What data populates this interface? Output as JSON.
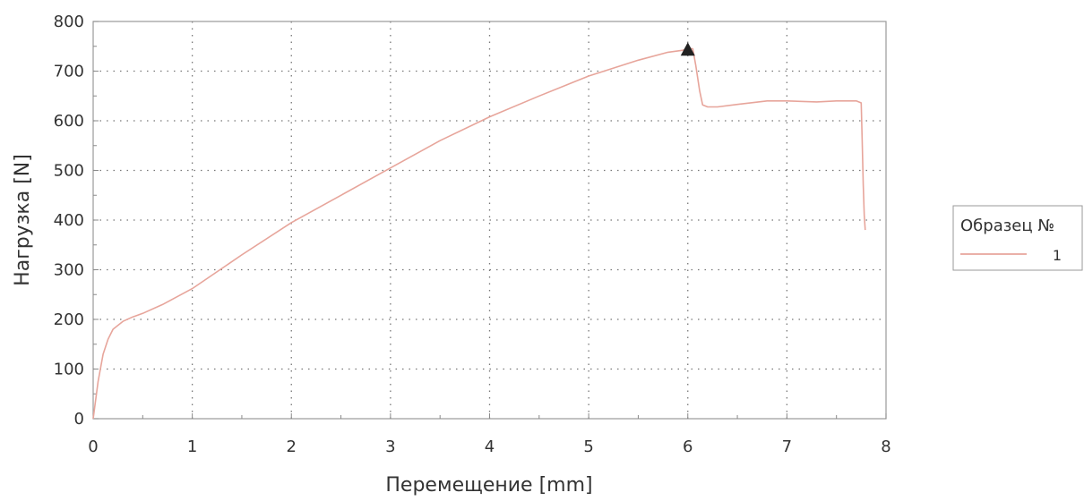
{
  "chart_data": {
    "type": "line",
    "xlabel": "Перемещение [mm]",
    "ylabel": "Нагрузка [N]",
    "xlim": [
      0,
      8
    ],
    "ylim": [
      0,
      800
    ],
    "x_ticks": [
      "0",
      "1",
      "2",
      "3",
      "4",
      "5",
      "6",
      "7",
      "8"
    ],
    "y_ticks": [
      "0",
      "100",
      "200",
      "300",
      "400",
      "500",
      "600",
      "700",
      "800"
    ],
    "grid": "dotted",
    "legend": {
      "title": "Образец №",
      "placement": "right",
      "entries": [
        {
          "label": "1",
          "color": "#e7a59b"
        }
      ]
    },
    "series": [
      {
        "name": "1",
        "color": "#e7a59b",
        "x": [
          0,
          0.02,
          0.05,
          0.1,
          0.15,
          0.2,
          0.3,
          0.4,
          0.5,
          0.7,
          1.0,
          1.5,
          2.0,
          2.5,
          3.0,
          3.5,
          4.0,
          4.5,
          5.0,
          5.5,
          5.8,
          5.95,
          6.0,
          6.05,
          6.08,
          6.12,
          6.15,
          6.2,
          6.3,
          6.5,
          6.8,
          7.0,
          7.3,
          7.5,
          7.7,
          7.75,
          7.76,
          7.77,
          7.78,
          7.79
        ],
        "y": [
          0,
          30,
          75,
          130,
          160,
          180,
          196,
          205,
          212,
          230,
          262,
          330,
          395,
          450,
          505,
          560,
          608,
          650,
          690,
          722,
          738,
          742,
          746,
          745,
          712,
          660,
          632,
          628,
          628,
          633,
          640,
          640,
          638,
          640,
          640,
          636,
          560,
          470,
          410,
          380
        ]
      }
    ],
    "markers": [
      {
        "x": 6.0,
        "y": 742,
        "shape": "triangle",
        "color": "#222222"
      }
    ]
  }
}
